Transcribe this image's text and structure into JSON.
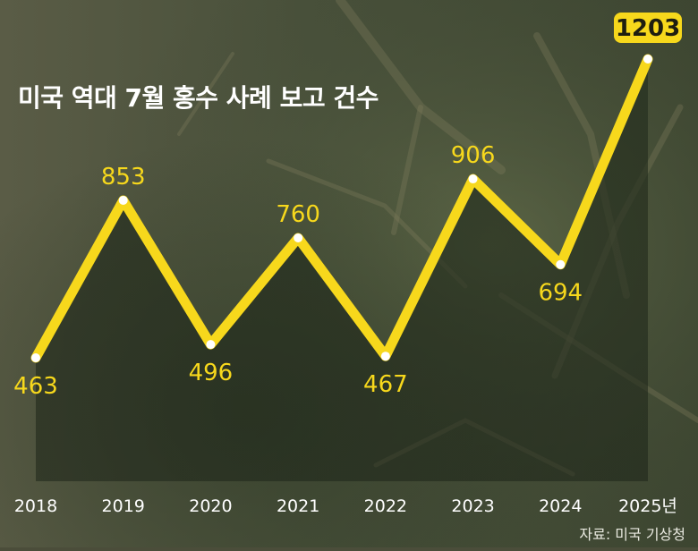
{
  "title": "미국 역대 7월 홍수 사례 보고 건수",
  "source": "자료: 미국 기상청",
  "colors": {
    "line": "#f7d81c",
    "label": "#f7d81c",
    "badge_text": "#1e1e10",
    "axis_text": "#ffffff"
  },
  "chart_data": {
    "type": "line",
    "title": "미국 역대 7월 홍수 사례 보고 건수",
    "xlabel": "",
    "ylabel": "",
    "categories": [
      "2018",
      "2019",
      "2020",
      "2021",
      "2022",
      "2023",
      "2024",
      "2025년"
    ],
    "series": [
      {
        "values": [
          463,
          853,
          496,
          760,
          467,
          906,
          694,
          1203
        ]
      }
    ],
    "ylim": [
      0,
      1300
    ],
    "grid": false,
    "highlight_last": true
  }
}
